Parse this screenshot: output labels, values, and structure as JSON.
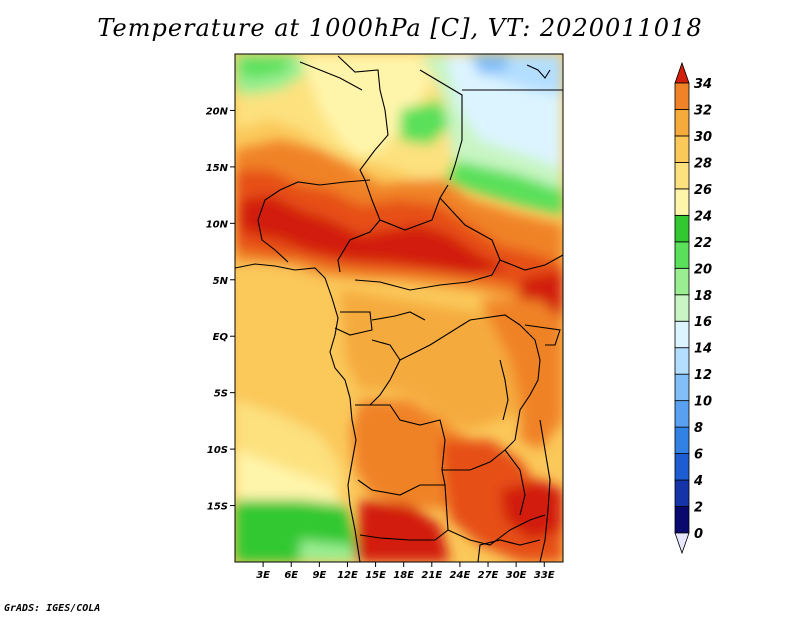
{
  "title": "Temperature at 1000hPa [C], VT: 2020011018",
  "footer": "GrADS: IGES/COLA",
  "map": {
    "lon_range": [
      0,
      35
    ],
    "lat_range": [
      -20,
      25
    ],
    "lat_ticks": [
      {
        "value": 20,
        "label": "20N"
      },
      {
        "value": 15,
        "label": "15N"
      },
      {
        "value": 10,
        "label": "10N"
      },
      {
        "value": 5,
        "label": "5N"
      },
      {
        "value": 0,
        "label": "EQ"
      },
      {
        "value": -5,
        "label": "5S"
      },
      {
        "value": -10,
        "label": "10S"
      },
      {
        "value": -15,
        "label": "15S"
      }
    ],
    "lon_ticks": [
      {
        "value": 3,
        "label": "3E"
      },
      {
        "value": 6,
        "label": "6E"
      },
      {
        "value": 9,
        "label": "9E"
      },
      {
        "value": 12,
        "label": "12E"
      },
      {
        "value": 15,
        "label": "15E"
      },
      {
        "value": 18,
        "label": "18E"
      },
      {
        "value": 21,
        "label": "21E"
      },
      {
        "value": 24,
        "label": "24E"
      },
      {
        "value": 27,
        "label": "27E"
      },
      {
        "value": 30,
        "label": "30E"
      },
      {
        "value": 33,
        "label": "33E"
      }
    ]
  },
  "colorbar": {
    "levels": [
      "0",
      "2",
      "4",
      "6",
      "8",
      "10",
      "12",
      "14",
      "16",
      "18",
      "20",
      "22",
      "24",
      "26",
      "28",
      "30",
      "32",
      "34"
    ],
    "colors": [
      "#0a0a6e",
      "#1434a8",
      "#1e5cd2",
      "#3282e6",
      "#5aa0f0",
      "#82bef8",
      "#b4deff",
      "#dcf4ff",
      "#c8f5c3",
      "#9aee91",
      "#5ae05a",
      "#32c832",
      "#fff5aa",
      "#fde17f",
      "#fbc85a",
      "#f5aa3c",
      "#f08228",
      "#e65014",
      "#d21e0a"
    ],
    "under_color": "#e6e6ff"
  }
}
